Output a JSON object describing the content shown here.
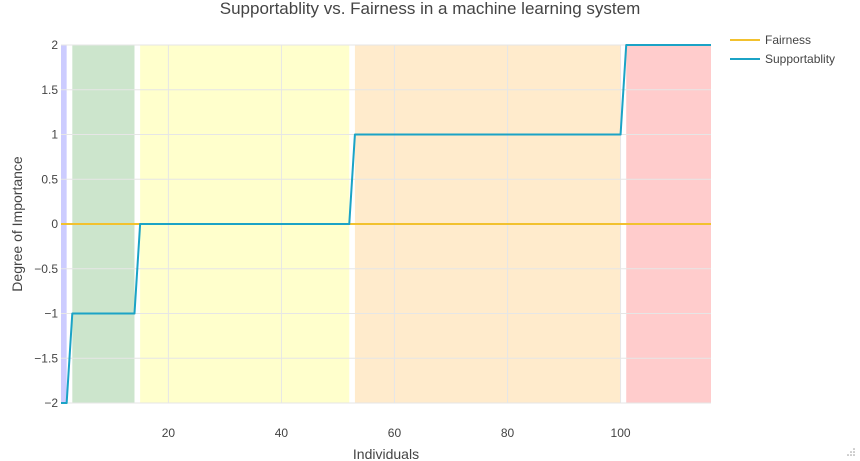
{
  "chart_data": {
    "type": "line",
    "title": "Supportablity vs. Fairness in a machine learning system",
    "xlabel": "Individuals",
    "ylabel": "Degree of Importance",
    "xlim": [
      1,
      116
    ],
    "ylim": [
      -2,
      2
    ],
    "x_ticks": [
      20,
      40,
      60,
      80,
      100
    ],
    "y_ticks": [
      -2,
      -1.5,
      -1,
      -0.5,
      0,
      0.5,
      1,
      1.5,
      2
    ],
    "y_tick_labels": [
      "−2",
      "−1.5",
      "−1",
      "−0.5",
      "0",
      "0.5",
      "1",
      "1.5",
      "2"
    ],
    "grid": true,
    "legend_position": "top-right",
    "bands": [
      {
        "x0": 1,
        "x1": 2,
        "color": "#ccccff"
      },
      {
        "x0": 3,
        "x1": 14,
        "color": "#cce5cc"
      },
      {
        "x0": 15,
        "x1": 52,
        "color": "#ffffcc"
      },
      {
        "x0": 53,
        "x1": 100,
        "color": "#ffebcc"
      },
      {
        "x0": 101,
        "x1": 116,
        "color": "#ffcccc"
      }
    ],
    "series": [
      {
        "name": "Fairness",
        "color": "#f2c12e",
        "x": [
          1,
          116
        ],
        "y": [
          0,
          0
        ]
      },
      {
        "name": "Supportablity",
        "color": "#1ba3c6",
        "x": [
          1,
          2,
          3,
          14,
          15,
          52,
          53,
          100,
          101,
          116
        ],
        "y": [
          -2,
          -2,
          -1,
          -1,
          0,
          0,
          1,
          1,
          2,
          2
        ]
      }
    ]
  }
}
